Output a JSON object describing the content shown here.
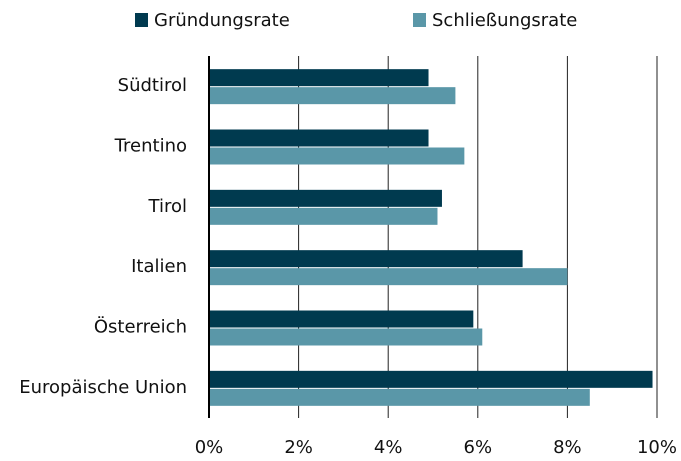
{
  "chart_data": {
    "type": "hbar",
    "categories": [
      "Südtirol",
      "Trentino",
      "Tirol",
      "Italien",
      "Österreich",
      "Europäische Union"
    ],
    "series": [
      {
        "name": "Gründungsrate",
        "color": "#003a4f",
        "values": [
          4.9,
          4.9,
          5.2,
          7.0,
          5.9,
          9.9
        ]
      },
      {
        "name": "Schließungsrate",
        "color": "#5a97a8",
        "values": [
          5.5,
          5.7,
          5.1,
          8.0,
          6.1,
          8.5
        ]
      }
    ],
    "xlim": [
      0,
      10
    ],
    "xticks": [
      {
        "value": 0,
        "label": "0%"
      },
      {
        "value": 2,
        "label": "2%"
      },
      {
        "value": 4,
        "label": "4%"
      },
      {
        "value": 6,
        "label": "6%"
      },
      {
        "value": 8,
        "label": "8%"
      },
      {
        "value": 10,
        "label": "10%"
      }
    ],
    "grid": true,
    "legend": "top"
  }
}
